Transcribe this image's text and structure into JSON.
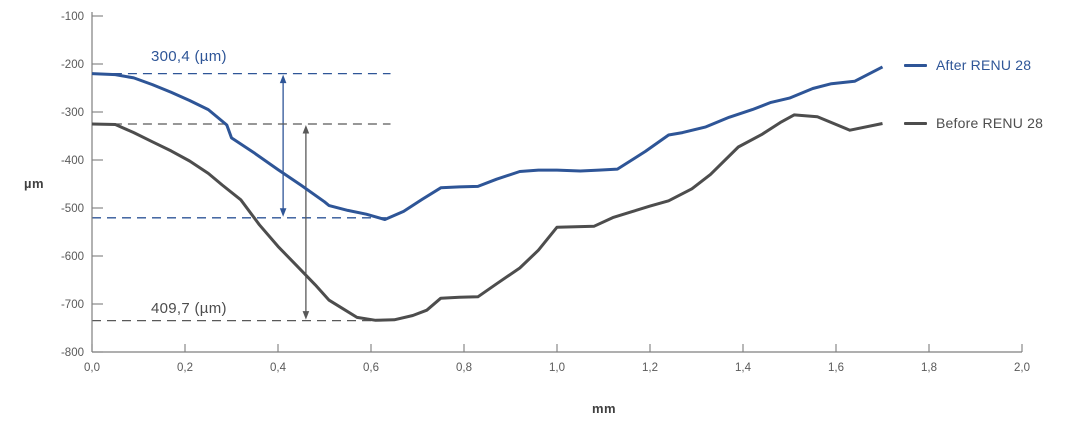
{
  "chart_data": {
    "type": "line",
    "title": "",
    "xlabel": "mm",
    "ylabel": "µm",
    "xlim": [
      0.0,
      2.0
    ],
    "ylim": [
      -800,
      -100
    ],
    "grid": false,
    "legend_position": "right-outside",
    "x_ticks": {
      "values": [
        0.0,
        0.2,
        0.4,
        0.6,
        0.8,
        1.0,
        1.2,
        1.4,
        1.6,
        1.8,
        2.0
      ],
      "labels": [
        "0,0",
        "0,2",
        "0,4",
        "0,6",
        "0,8",
        "1,0",
        "1,2",
        "1,4",
        "1,6",
        "1,8",
        "2,0"
      ]
    },
    "y_ticks": {
      "values": [
        -100,
        -200,
        -300,
        -400,
        -500,
        -600,
        -700,
        -800
      ],
      "labels": [
        "-100",
        "-200",
        "-300",
        "-400",
        "-500",
        "-600",
        "-700",
        "-800"
      ]
    },
    "series": [
      {
        "name": "After RENU 28",
        "color": "#2e5597",
        "points": [
          [
            0.0,
            -220
          ],
          [
            0.05,
            -222
          ],
          [
            0.09,
            -229
          ],
          [
            0.13,
            -243
          ],
          [
            0.17,
            -259
          ],
          [
            0.21,
            -276
          ],
          [
            0.25,
            -295
          ],
          [
            0.29,
            -327
          ],
          [
            0.3,
            -354
          ],
          [
            0.35,
            -386
          ],
          [
            0.4,
            -420
          ],
          [
            0.45,
            -453
          ],
          [
            0.5,
            -487
          ],
          [
            0.51,
            -495
          ],
          [
            0.55,
            -505
          ],
          [
            0.59,
            -513
          ],
          [
            0.63,
            -524
          ],
          [
            0.67,
            -507
          ],
          [
            0.71,
            -482
          ],
          [
            0.75,
            -458
          ],
          [
            0.79,
            -456
          ],
          [
            0.83,
            -455
          ],
          [
            0.87,
            -440
          ],
          [
            0.92,
            -424
          ],
          [
            0.96,
            -421
          ],
          [
            1.0,
            -421
          ],
          [
            1.05,
            -423
          ],
          [
            1.09,
            -421
          ],
          [
            1.13,
            -419
          ],
          [
            1.19,
            -382
          ],
          [
            1.24,
            -348
          ],
          [
            1.27,
            -343
          ],
          [
            1.32,
            -331
          ],
          [
            1.37,
            -311
          ],
          [
            1.42,
            -295
          ],
          [
            1.46,
            -280
          ],
          [
            1.5,
            -271
          ],
          [
            1.55,
            -251
          ],
          [
            1.59,
            -241
          ],
          [
            1.64,
            -236
          ],
          [
            1.7,
            -206
          ]
        ]
      },
      {
        "name": "Before RENU 28",
        "color": "#4d4d4d",
        "points": [
          [
            0.0,
            -325
          ],
          [
            0.05,
            -326
          ],
          [
            0.09,
            -343
          ],
          [
            0.13,
            -362
          ],
          [
            0.17,
            -381
          ],
          [
            0.21,
            -402
          ],
          [
            0.25,
            -428
          ],
          [
            0.28,
            -452
          ],
          [
            0.32,
            -483
          ],
          [
            0.36,
            -535
          ],
          [
            0.4,
            -580
          ],
          [
            0.44,
            -620
          ],
          [
            0.48,
            -660
          ],
          [
            0.51,
            -692
          ],
          [
            0.54,
            -710
          ],
          [
            0.57,
            -728
          ],
          [
            0.61,
            -734
          ],
          [
            0.65,
            -733
          ],
          [
            0.69,
            -724
          ],
          [
            0.72,
            -713
          ],
          [
            0.75,
            -688
          ],
          [
            0.79,
            -686
          ],
          [
            0.83,
            -685
          ],
          [
            0.87,
            -658
          ],
          [
            0.92,
            -625
          ],
          [
            0.96,
            -588
          ],
          [
            1.0,
            -540
          ],
          [
            1.04,
            -539
          ],
          [
            1.08,
            -538
          ],
          [
            1.12,
            -520
          ],
          [
            1.16,
            -508
          ],
          [
            1.2,
            -496
          ],
          [
            1.24,
            -485
          ],
          [
            1.29,
            -460
          ],
          [
            1.33,
            -430
          ],
          [
            1.39,
            -373
          ],
          [
            1.44,
            -347
          ],
          [
            1.48,
            -322
          ],
          [
            1.51,
            -306
          ],
          [
            1.56,
            -310
          ],
          [
            1.63,
            -338
          ],
          [
            1.7,
            -324
          ]
        ]
      }
    ],
    "annotations": [
      {
        "id": "after-depth",
        "label": "300,4 (µm)",
        "color": "#2e5597",
        "top_value": -220,
        "bottom_value": -520.4,
        "top_line_x_mm": [
          0.045,
          0.642
        ],
        "bottom_line_x_mm": [
          0.0,
          0.642
        ],
        "arrow_x_mm": 0.411,
        "dashed": true
      },
      {
        "id": "before-depth",
        "label": "409,7 (µm)",
        "color": "#595959",
        "top_value": -325,
        "bottom_value": -734.7,
        "top_line_x_mm": [
          0.045,
          0.642
        ],
        "bottom_line_x_mm": [
          0.0,
          0.642
        ],
        "arrow_x_mm": 0.46,
        "dashed": true
      }
    ]
  },
  "legend": {
    "items": [
      {
        "label": "After RENU 28",
        "color": "#2e5597"
      },
      {
        "label": "Before RENU 28",
        "color": "#4d4d4d"
      }
    ]
  },
  "colors": {
    "axis": "#7f7f7f",
    "tick_text": "#595959",
    "axis_label_text": "#404040",
    "background": "#ffffff"
  }
}
